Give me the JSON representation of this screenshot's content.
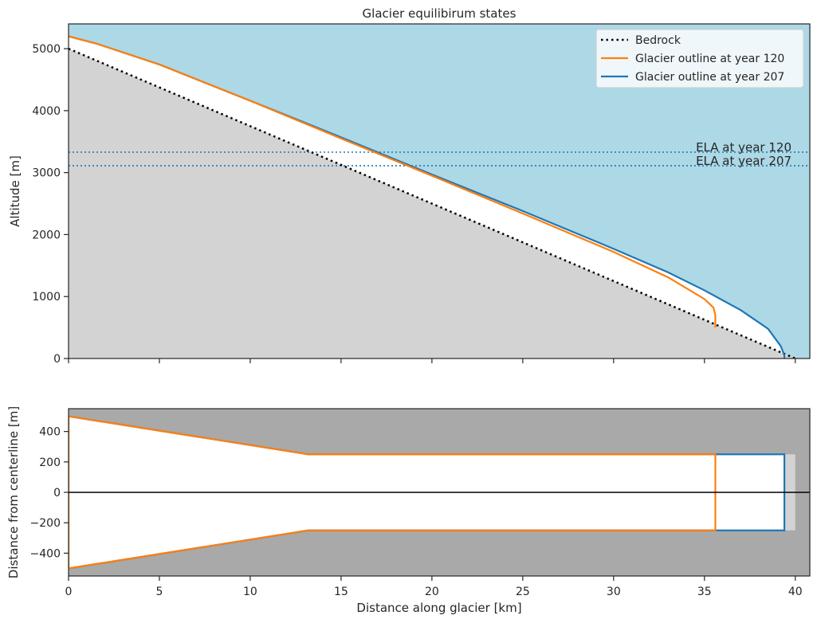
{
  "chart_data": [
    {
      "type": "line",
      "title": "Glacier equilibirum states",
      "xlabel": "",
      "ylabel": "Altitude [m]",
      "xlim": [
        0,
        40.8
      ],
      "ylim": [
        0,
        5400
      ],
      "yticks": [
        0,
        1000,
        2000,
        3000,
        4000,
        5000
      ],
      "legend_position": "top-right",
      "grid": false,
      "colors": {
        "sky": "#add8e6",
        "bedrock_fill": "#d3d3d3",
        "bedrock_line": "#000000",
        "year120": "#ff7f0e",
        "year207": "#1f77b4"
      },
      "series": [
        {
          "name": "Bedrock",
          "style": "dotted",
          "x": [
            0,
            40
          ],
          "y": [
            5000,
            0
          ]
        },
        {
          "name": "Glacier outline at year 120",
          "x": [
            0,
            1.5,
            5,
            10,
            15,
            20,
            25,
            30,
            33,
            35,
            35.5,
            35.6,
            35.6
          ],
          "y": [
            5200,
            5085,
            4745,
            4160,
            3550,
            2950,
            2340,
            1720,
            1310,
            960,
            820,
            700,
            500
          ]
        },
        {
          "name": "Glacier outline at year 207",
          "x": [
            0,
            1.5,
            5,
            10,
            15,
            20,
            25,
            30,
            33,
            35,
            37,
            38.5,
            39.2,
            39.4,
            39.4
          ],
          "y": [
            5200,
            5085,
            4745,
            4160,
            3570,
            2970,
            2380,
            1770,
            1390,
            1100,
            780,
            480,
            200,
            50,
            0
          ]
        }
      ],
      "ela_lines": [
        {
          "label": "ELA at year 120",
          "y": 3330,
          "color": "#1f77b4"
        },
        {
          "label": "ELA at year 207",
          "y": 3110,
          "color": "#1f77b4"
        }
      ]
    },
    {
      "type": "line",
      "title": "",
      "xlabel": "Distance along glacier [km]",
      "ylabel": "Distance from centerline [m]",
      "xlim": [
        0,
        40.8
      ],
      "ylim": [
        -550,
        550
      ],
      "xticks": [
        0,
        5,
        10,
        15,
        20,
        25,
        30,
        35,
        40
      ],
      "yticks": [
        -400,
        -200,
        0,
        200,
        400
      ],
      "grid": false,
      "colors": {
        "background": "#a9a9a9",
        "bed_extent": "#d3d3d3",
        "glacier_fill": "#ffffff",
        "centerline": "#000000",
        "year120": "#ff7f0e",
        "year207": "#1f77b4"
      },
      "bed_extent": {
        "x_end": 40,
        "half_width": 250
      },
      "outlines": [
        {
          "name": "Glacier outline at year 207",
          "x": [
            0,
            13.2,
            39.4
          ],
          "half_width": [
            500,
            250,
            250
          ]
        },
        {
          "name": "Glacier outline at year 120",
          "x": [
            0,
            13.2,
            35.6
          ],
          "half_width": [
            500,
            250,
            250
          ]
        }
      ]
    }
  ]
}
